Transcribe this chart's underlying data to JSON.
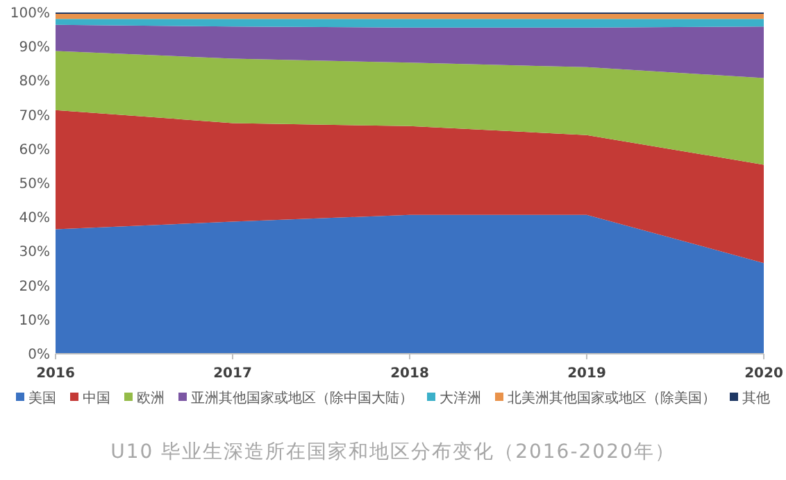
{
  "chart_data": {
    "type": "area",
    "title": "U10 毕业生深造所在国家和地区分布变化（2016-2020年）",
    "stacked": true,
    "legend": "bottom",
    "grid": false,
    "x": [
      2016,
      2017,
      2018,
      2019,
      2020
    ],
    "xlim": [
      2016,
      2020
    ],
    "xticks": [
      2016,
      2017,
      2018,
      2019,
      2020
    ],
    "ylim": [
      0,
      100
    ],
    "yticks": [
      {
        "value": 0,
        "label": "0%"
      },
      {
        "value": 10,
        "label": "10%"
      },
      {
        "value": 20,
        "label": "20%"
      },
      {
        "value": 30,
        "label": "30%"
      },
      {
        "value": 40,
        "label": "40%"
      },
      {
        "value": 50,
        "label": "50%"
      },
      {
        "value": 60,
        "label": "60%"
      },
      {
        "value": 70,
        "label": "70%"
      },
      {
        "value": 80,
        "label": "80%"
      },
      {
        "value": 90,
        "label": "90%"
      },
      {
        "value": 100,
        "label": "100%"
      }
    ],
    "series": [
      {
        "name": "美国",
        "color": "#3b72c2",
        "values": [
          36.5,
          38.7,
          40.7,
          40.7,
          26.6
        ]
      },
      {
        "name": "中国",
        "color": "#c43a36",
        "values": [
          34.9,
          28.9,
          26.0,
          23.4,
          28.8
        ]
      },
      {
        "name": "欧洲",
        "color": "#94bb48",
        "values": [
          17.3,
          18.9,
          18.6,
          19.9,
          25.4
        ]
      },
      {
        "name": "亚洲其他国家或地区（除中国大陆）",
        "color": "#7b56a3",
        "values": [
          7.7,
          9.4,
          10.3,
          11.6,
          15.1
        ]
      },
      {
        "name": "大洋洲",
        "color": "#3cb0c9",
        "values": [
          1.7,
          2.2,
          2.5,
          2.5,
          2.2
        ]
      },
      {
        "name": "北美洲其他国家或地区（除美国）",
        "color": "#e9924a",
        "values": [
          1.5,
          1.5,
          1.5,
          1.5,
          1.5
        ]
      },
      {
        "name": "其他",
        "color": "#1f3864",
        "values": [
          0.4,
          0.4,
          0.4,
          0.4,
          0.4
        ]
      }
    ]
  }
}
